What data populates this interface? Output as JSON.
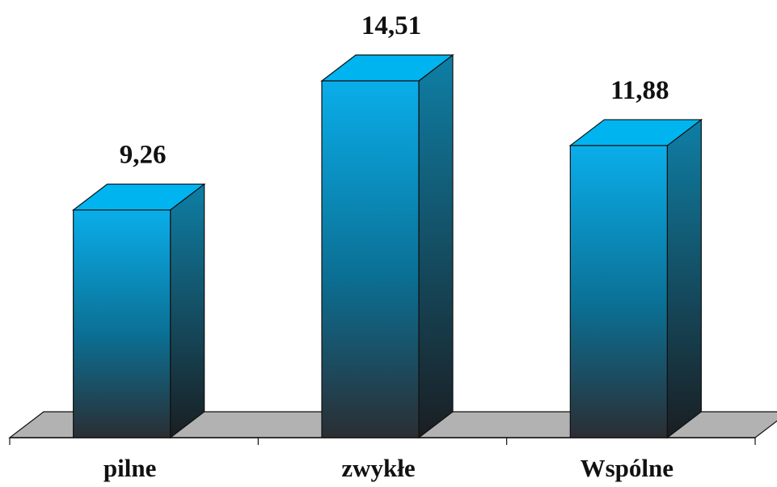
{
  "chart_data": {
    "type": "bar",
    "style": "3d-column",
    "title": "",
    "xlabel": "",
    "ylabel": "",
    "categories": [
      "pilne",
      "zwykłe",
      "Wspólne"
    ],
    "values": [
      9.26,
      14.51,
      11.88
    ],
    "value_labels": [
      "9,26",
      "14,51",
      "11,88"
    ],
    "ylim": [
      0,
      16
    ],
    "grid": false,
    "legend": "none",
    "colors": {
      "bar_top": "#00B4F0",
      "bar_front_top": "#0AAEEA",
      "bar_front_bottom": "#2A2E33",
      "bar_side_top": "#0E7FA6",
      "bar_side_bottom": "#1A1E22",
      "floor": "#B2B2B2",
      "outline": "#111111"
    }
  }
}
